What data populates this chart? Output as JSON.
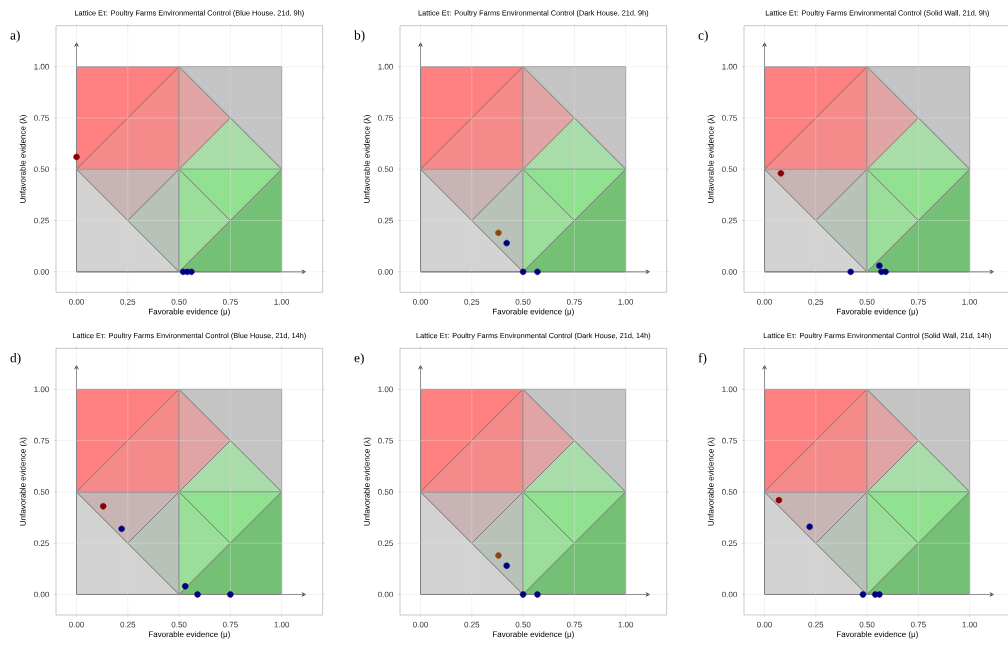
{
  "chart_data": [
    {
      "type": "scatter",
      "title": "Lattice Eτ: Poultry Farms Environmental Control (Blue House, 21d, 9h)",
      "xlabel": "Favorable evidence (μ)",
      "ylabel": "Unfavorable evidence (λ)",
      "xlim": [
        -0.1,
        1.2
      ],
      "ylim": [
        -0.1,
        1.2
      ],
      "xticks": [
        {
          "value": 0,
          "label": "0.00"
        },
        {
          "value": 0.25,
          "label": "0.25"
        },
        {
          "value": 0.5,
          "label": "0.50"
        },
        {
          "value": 0.75,
          "label": "0.75"
        },
        {
          "value": 1,
          "label": "1.00"
        }
      ],
      "yticks": [
        {
          "value": 0,
          "label": "0.00"
        },
        {
          "value": 0.25,
          "label": "0.25"
        },
        {
          "value": 0.5,
          "label": "0.50"
        },
        {
          "value": 0.75,
          "label": "0.75"
        },
        {
          "value": 1,
          "label": "1.00"
        }
      ],
      "grid": true,
      "annotations": [
        "a)"
      ],
      "series": [
        {
          "color": "#8b0000",
          "x": [
            0.0
          ],
          "values": [
            0.56
          ]
        },
        {
          "color": "#000080",
          "x": [
            0.52,
            0.54,
            0.56
          ],
          "values": [
            0,
            0,
            0
          ]
        }
      ]
    },
    {
      "type": "scatter",
      "title": "Lattice Eτ: Poultry Farms Environmental Control (Dark House, 21d, 9h)",
      "xlabel": "Favorable evidence (μ)",
      "ylabel": "Unfavorable evidence (λ)",
      "xlim": [
        -0.1,
        1.2
      ],
      "ylim": [
        -0.1,
        1.2
      ],
      "xticks": [
        {
          "value": 0,
          "label": "0.00"
        },
        {
          "value": 0.25,
          "label": "0.25"
        },
        {
          "value": 0.5,
          "label": "0.50"
        },
        {
          "value": 0.75,
          "label": "0.75"
        },
        {
          "value": 1,
          "label": "1.00"
        }
      ],
      "yticks": [
        {
          "value": 0,
          "label": "0.00"
        },
        {
          "value": 0.25,
          "label": "0.25"
        },
        {
          "value": 0.5,
          "label": "0.50"
        },
        {
          "value": 0.75,
          "label": "0.75"
        },
        {
          "value": 1,
          "label": "1.00"
        }
      ],
      "grid": true,
      "annotations": [
        "b)"
      ],
      "series": [
        {
          "color": "#8b4513",
          "x": [
            0.38
          ],
          "values": [
            0.19
          ]
        },
        {
          "color": "#000080",
          "x": [
            0.42,
            0.5,
            0.57
          ],
          "values": [
            0.14,
            0,
            0
          ]
        }
      ]
    },
    {
      "type": "scatter",
      "title": "Lattice Eτ: Poultry Farms Environmental Control (Solid Wall, 21d, 9h)",
      "xlabel": "Favorable evidence (μ)",
      "ylabel": "Unfavorable evidence (λ)",
      "xlim": [
        -0.1,
        1.2
      ],
      "ylim": [
        -0.1,
        1.2
      ],
      "xticks": [
        {
          "value": 0,
          "label": "0.00"
        },
        {
          "value": 0.25,
          "label": "0.25"
        },
        {
          "value": 0.5,
          "label": "0.50"
        },
        {
          "value": 0.75,
          "label": "0.75"
        },
        {
          "value": 1,
          "label": "1.00"
        }
      ],
      "yticks": [
        {
          "value": 0,
          "label": "0.00"
        },
        {
          "value": 0.25,
          "label": "0.25"
        },
        {
          "value": 0.5,
          "label": "0.50"
        },
        {
          "value": 0.75,
          "label": "0.75"
        },
        {
          "value": 1,
          "label": "1.00"
        }
      ],
      "grid": true,
      "annotations": [
        "c)"
      ],
      "series": [
        {
          "color": "#8b0000",
          "x": [
            0.08
          ],
          "values": [
            0.48
          ]
        },
        {
          "color": "#000080",
          "x": [
            0.42,
            0.56,
            0.57,
            0.59
          ],
          "values": [
            0,
            0.03,
            0,
            0
          ]
        }
      ]
    },
    {
      "type": "scatter",
      "title": "Lattice Eτ: Poultry Farms Environmental Control (Blue House, 21d, 14h)",
      "xlabel": "Favorable evidence (μ)",
      "ylabel": "Unfavorable evidence (λ)",
      "xlim": [
        -0.1,
        1.2
      ],
      "ylim": [
        -0.1,
        1.2
      ],
      "xticks": [
        {
          "value": 0,
          "label": "0.00"
        },
        {
          "value": 0.25,
          "label": "0.25"
        },
        {
          "value": 0.5,
          "label": "0.50"
        },
        {
          "value": 0.75,
          "label": "0.75"
        },
        {
          "value": 1,
          "label": "1.00"
        }
      ],
      "yticks": [
        {
          "value": 0,
          "label": "0.00"
        },
        {
          "value": 0.25,
          "label": "0.25"
        },
        {
          "value": 0.5,
          "label": "0.50"
        },
        {
          "value": 0.75,
          "label": "0.75"
        },
        {
          "value": 1,
          "label": "1.00"
        }
      ],
      "grid": true,
      "annotations": [
        "d)"
      ],
      "series": [
        {
          "color": "#8b0000",
          "x": [
            0.13
          ],
          "values": [
            0.43
          ]
        },
        {
          "color": "#000080",
          "x": [
            0.22,
            0.53,
            0.59,
            0.75
          ],
          "values": [
            0.32,
            0.04,
            0,
            0
          ]
        }
      ]
    },
    {
      "type": "scatter",
      "title": "Lattice Eτ: Poultry Farms Environmental Control (Dark House, 21d, 14h)",
      "xlabel": "Favorable evidence (μ)",
      "ylabel": "Unfavorable evidence (λ)",
      "xlim": [
        -0.1,
        1.2
      ],
      "ylim": [
        -0.1,
        1.2
      ],
      "xticks": [
        {
          "value": 0,
          "label": "0.00"
        },
        {
          "value": 0.25,
          "label": "0.25"
        },
        {
          "value": 0.5,
          "label": "0.50"
        },
        {
          "value": 0.75,
          "label": "0.75"
        },
        {
          "value": 1,
          "label": "1.00"
        }
      ],
      "yticks": [
        {
          "value": 0,
          "label": "0.00"
        },
        {
          "value": 0.25,
          "label": "0.25"
        },
        {
          "value": 0.5,
          "label": "0.50"
        },
        {
          "value": 0.75,
          "label": "0.75"
        },
        {
          "value": 1,
          "label": "1.00"
        }
      ],
      "grid": true,
      "annotations": [
        "e)"
      ],
      "series": [
        {
          "color": "#8b4513",
          "x": [
            0.38
          ],
          "values": [
            0.19
          ]
        },
        {
          "color": "#000080",
          "x": [
            0.42,
            0.5,
            0.57
          ],
          "values": [
            0.14,
            0,
            0
          ]
        }
      ]
    },
    {
      "type": "scatter",
      "title": "Lattice Eτ: Poultry Farms Environmental Control (Solid Wall, 21d, 14h)",
      "xlabel": "Favorable evidence (μ)",
      "ylabel": "Unfavorable evidence (λ)",
      "xlim": [
        -0.1,
        1.2
      ],
      "ylim": [
        -0.1,
        1.2
      ],
      "xticks": [
        {
          "value": 0,
          "label": "0.00"
        },
        {
          "value": 0.25,
          "label": "0.25"
        },
        {
          "value": 0.5,
          "label": "0.50"
        },
        {
          "value": 0.75,
          "label": "0.75"
        },
        {
          "value": 1,
          "label": "1.00"
        }
      ],
      "yticks": [
        {
          "value": 0,
          "label": "0.00"
        },
        {
          "value": 0.25,
          "label": "0.25"
        },
        {
          "value": 0.5,
          "label": "0.50"
        },
        {
          "value": 0.75,
          "label": "0.75"
        },
        {
          "value": 1,
          "label": "1.00"
        }
      ],
      "grid": true,
      "annotations": [
        "f)"
      ],
      "series": [
        {
          "color": "#8b0000",
          "x": [
            0.07
          ],
          "values": [
            0.46
          ]
        },
        {
          "color": "#000080",
          "x": [
            0.22,
            0.48,
            0.54,
            0.56
          ],
          "values": [
            0.33,
            0,
            0,
            0
          ]
        }
      ]
    }
  ]
}
